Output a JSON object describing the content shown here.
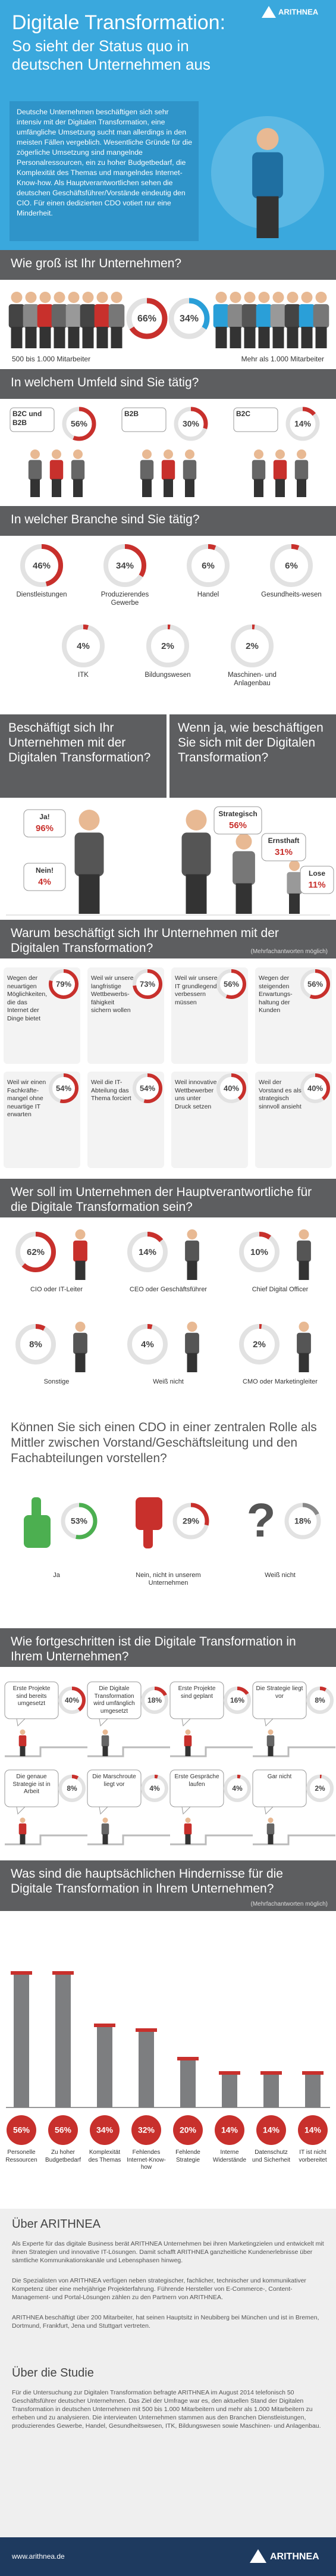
{
  "header": {
    "logo": "ARITHNEA",
    "title": "Digitale Transformation:",
    "subtitle": "So sieht der Status quo in deutschen Unternehmen aus",
    "intro": "Deutsche Unternehmen beschäftigen sich sehr intensiv mit der Digitalen Transformation, eine umfängliche Umsetzung sucht man allerdings in den meisten Fällen vergeblich. Wesentliche Gründe für die zögerliche Umsetzung sind mangelnde Personalressourcen, ein zu hoher Budgetbedarf, die Komplexität des Themas und mangelndes Internet-Know-how. Als Hauptverantwortlichen sehen die deutschen Geschäftsführer/Vorstände eindeutig den CIO. Für einen dedizierten CDO votiert nur eine Minderheit."
  },
  "size": {
    "title": "Wie groß ist Ihr Unternehmen?",
    "items": [
      {
        "label": "500 bis 1.000 Mitarbeiter",
        "value": 66,
        "value_label": "66%"
      },
      {
        "label": "Mehr als 1.000 Mitarbeiter",
        "value": 34,
        "value_label": "34%"
      }
    ]
  },
  "environment": {
    "title": "In welchem Umfeld sind Sie tätig?",
    "items": [
      {
        "label": "B2C und B2B",
        "value": 56,
        "value_label": "56%"
      },
      {
        "label": "B2B",
        "value": 30,
        "value_label": "30%"
      },
      {
        "label": "B2C",
        "value": 14,
        "value_label": "14%"
      }
    ]
  },
  "industry": {
    "title": "In welcher Branche sind Sie tätig?",
    "items": [
      {
        "label": "Dienstleistungen",
        "value": 46,
        "value_label": "46%"
      },
      {
        "label": "Produzierendes Gewerbe",
        "value": 34,
        "value_label": "34%"
      },
      {
        "label": "Handel",
        "value": 6,
        "value_label": "6%"
      },
      {
        "label": "Gesundheits-wesen",
        "value": 6,
        "value_label": "6%"
      },
      {
        "label": "ITK",
        "value": 4,
        "value_label": "4%"
      },
      {
        "label": "Bildungswesen",
        "value": 2,
        "value_label": "2%"
      },
      {
        "label": "Maschinen- und Anlagenbau",
        "value": 2,
        "value_label": "2%"
      }
    ]
  },
  "engagement": {
    "title": "Beschäftigt sich Ihr Unternehmen mit der Digitalen Transformation?",
    "items": [
      {
        "label": "Ja!",
        "value": 96,
        "value_label": "96%"
      },
      {
        "label": "Nein!",
        "value": 4,
        "value_label": "4%"
      }
    ]
  },
  "approach": {
    "title": "Wenn ja, wie beschäftigen Sie sich mit der Digitalen Transformation?",
    "items": [
      {
        "label": "Strategisch",
        "value": 56,
        "value_label": "56%"
      },
      {
        "label": "Ernsthaft",
        "value": 31,
        "value_label": "31%"
      },
      {
        "label": "Lose",
        "value": 11,
        "value_label": "11%"
      }
    ]
  },
  "reasons": {
    "title": "Warum beschäftigt sich Ihr Unternehmen mit der Digitalen Transformation?",
    "note": "(Mehrfachantworten möglich)",
    "items": [
      {
        "label": "Wegen der neuartigen Möglichkeiten, die das Internet der Dinge bietet",
        "value": 79,
        "value_label": "79%"
      },
      {
        "label": "Weil wir unsere langfristige Wettbewerbs-fähigkeit sichern wollen",
        "value": 73,
        "value_label": "73%"
      },
      {
        "label": "Weil wir unsere IT grundlegend verbessern müssen",
        "value": 56,
        "value_label": "56%"
      },
      {
        "label": "Wegen der steigenden Erwartungs-haltung der Kunden",
        "value": 56,
        "value_label": "56%"
      },
      {
        "label": "Weil wir einen Fachkräfte-mangel ohne neuartige IT erwarten",
        "value": 54,
        "value_label": "54%"
      },
      {
        "label": "Weil die IT-Abteilung das Thema forciert",
        "value": 54,
        "value_label": "54%"
      },
      {
        "label": "Weil innovative Wettbewerber uns unter Druck setzen",
        "value": 40,
        "value_label": "40%"
      },
      {
        "label": "Weil der Vorstand es als strategisch sinnvoll ansieht",
        "value": 40,
        "value_label": "40%"
      }
    ]
  },
  "responsible": {
    "title": "Wer soll im Unternehmen der Hauptverantwortliche für die Digitale Transformation sein?",
    "items": [
      {
        "label": "CIO oder IT-Leiter",
        "value": 62,
        "value_label": "62%"
      },
      {
        "label": "CEO oder Geschäftsführer",
        "value": 14,
        "value_label": "14%"
      },
      {
        "label": "Chief Digital Officer",
        "value": 10,
        "value_label": "10%"
      },
      {
        "label": "Sonstige",
        "value": 8,
        "value_label": "8%"
      },
      {
        "label": "Weiß nicht",
        "value": 4,
        "value_label": "4%"
      },
      {
        "label": "CMO oder Marketingleiter",
        "value": 2,
        "value_label": "2%"
      }
    ]
  },
  "cdo": {
    "title": "Können Sie sich einen CDO in einer zentralen Rolle als Mittler zwischen Vorstand/Geschäftsleitung und den Fachabteilungen vorstellen?",
    "items": [
      {
        "label": "Ja",
        "value": 53,
        "value_label": "53%"
      },
      {
        "label": "Nein, nicht in unserem Unternehmen",
        "value": 29,
        "value_label": "29%"
      },
      {
        "label": "Weiß nicht",
        "value": 18,
        "value_label": "18%"
      }
    ]
  },
  "progress": {
    "title": "Wie fortgeschritten ist die Digitale Transformation in Ihrem Unternehmen?",
    "items": [
      {
        "label": "Erste Projekte sind bereits umgesetzt",
        "value": 40,
        "value_label": "40%"
      },
      {
        "label": "Die Digitale Transformation wird umfänglich umgesetzt",
        "value": 18,
        "value_label": "18%"
      },
      {
        "label": "Erste Projekte sind geplant",
        "value": 16,
        "value_label": "16%"
      },
      {
        "label": "Die Strategie liegt vor",
        "value": 8,
        "value_label": "8%"
      },
      {
        "label": "Die genaue Strategie ist in Arbeit",
        "value": 8,
        "value_label": "8%"
      },
      {
        "label": "Die Marschroute liegt vor",
        "value": 4,
        "value_label": "4%"
      },
      {
        "label": "Erste Gespräche laufen",
        "value": 4,
        "value_label": "4%"
      },
      {
        "label": "Gar nicht",
        "value": 2,
        "value_label": "2%"
      }
    ]
  },
  "obstacles": {
    "title": "Was sind die hauptsächlichen Hindernisse für die Digitale Transformation in Ihrem Unternehmen?",
    "note": "(Mehrfachantworten möglich)",
    "items": [
      {
        "label": "Personelle Ressourcen",
        "value": 56,
        "value_label": "56%"
      },
      {
        "label": "Zu hoher Budgetbedarf",
        "value": 56,
        "value_label": "56%"
      },
      {
        "label": "Komplexität des Themas",
        "value": 34,
        "value_label": "34%"
      },
      {
        "label": "Fehlendes Internet-Know-how",
        "value": 32,
        "value_label": "32%"
      },
      {
        "label": "Fehlende Strategie",
        "value": 20,
        "value_label": "20%"
      },
      {
        "label": "Interne Widerstände",
        "value": 14,
        "value_label": "14%"
      },
      {
        "label": "Datenschutz und Sicherheit",
        "value": 14,
        "value_label": "14%"
      },
      {
        "label": "IT ist nicht vorbereitet",
        "value": 14,
        "value_label": "14%"
      }
    ]
  },
  "about": {
    "title": "Über ARITHNEA",
    "paragraphs": [
      "Als Experte für das digitale Business berät ARITHNEA Unternehmen bei ihren Marketingzielen und entwickelt mit ihnen Strategien und innovative IT-Lösungen. Damit schafft ARITHNEA ganzheitliche Kundenerlebnisse über sämtliche Kommunikationskanäle und Lebensphasen hinweg.",
      "Die Spezialisten von ARITHNEA verfügen neben strategischer, fachlicher, technischer und kommunikativer Kompetenz über eine mehrjährige Projekterfahrung. Führende Hersteller von E-Commerce-, Content-Management- und Portal-Lösungen zählen zu den Partnern von ARITHNEA.",
      "ARITHNEA beschäftigt über 200 Mitarbeiter, hat seinen Hauptsitz in Neubiberg bei München und ist in Bremen, Dortmund, Frankfurt, Jena und Stuttgart vertreten."
    ]
  },
  "study": {
    "title": "Über die Studie",
    "paragraphs": [
      "Für die Untersuchung zur Digitalen Transformation befragte ARITHNEA im August 2014 telefonisch 50 Geschäftsführer deutscher Unternehmen. Das Ziel der Umfrage war es, den aktuellen Stand der Digitalen Transformation in deutschen Unternehmen mit 500 bis 1.000 Mitarbeitern und mehr als 1.000 Mitarbeitern zu erheben und zu analysieren. Die interviewten Unternehmen stammen aus den Branchen Dienstleistungen, produzierendes Gewerbe, Handel, Gesundheitswesen, ITK, Bildungswesen sowie Maschinen- und Anlagenbau."
    ]
  },
  "footer": {
    "url": "www.arithnea.de",
    "logo": "ARITHNEA"
  }
}
